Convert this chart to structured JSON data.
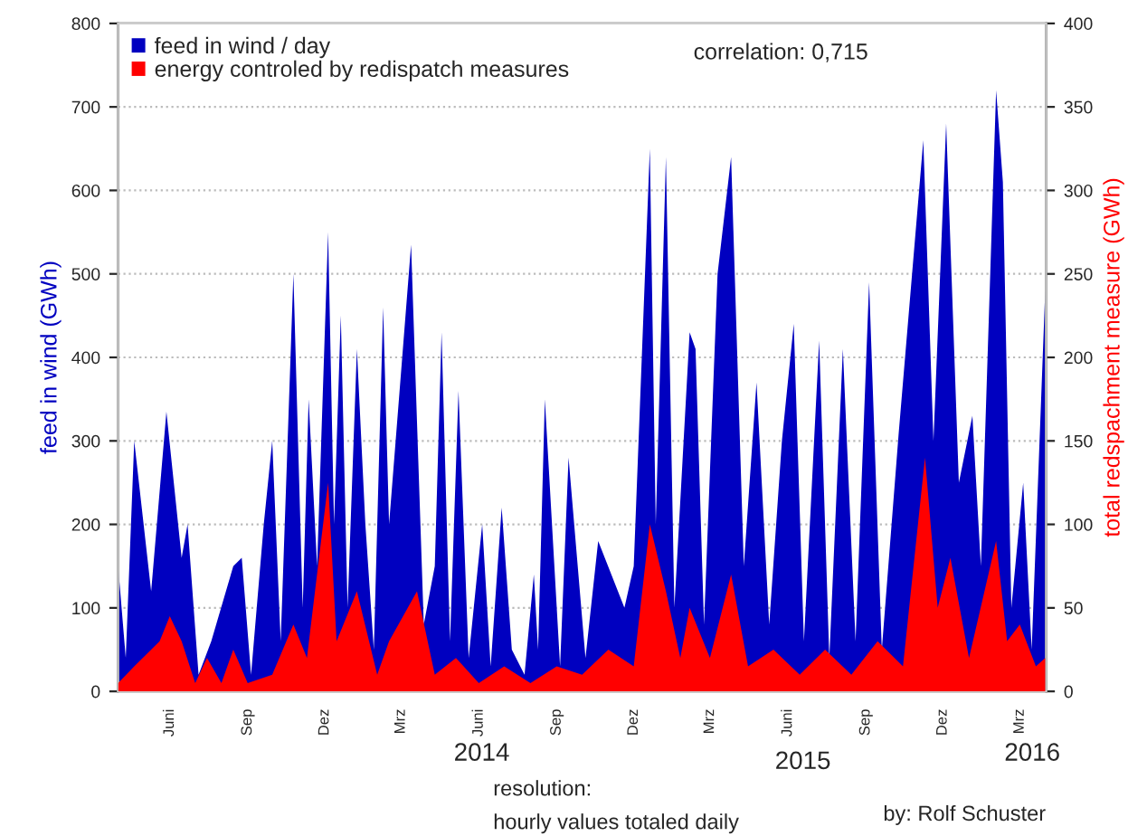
{
  "chart_data": {
    "type": "area",
    "annotations": [
      "correlation: 0,715",
      "2014",
      "2015",
      "2016",
      "resolution:",
      "hourly values totaled daily",
      "by: Rolf Schuster"
    ],
    "ylabel": "feed in wind (GWh)",
    "y2label": "total redspachment measure (GWh)",
    "xlim": [
      "2013-04-01",
      "2016-04-01"
    ],
    "xticks": [
      {
        "value": "2013-06-01",
        "label": "Juni"
      },
      {
        "value": "2013-09-01",
        "label": "Sep"
      },
      {
        "value": "2013-12-01",
        "label": "Dez"
      },
      {
        "value": "2014-03-01",
        "label": "Mrz"
      },
      {
        "value": "2014-06-01",
        "label": "Juni"
      },
      {
        "value": "2014-09-01",
        "label": "Sep"
      },
      {
        "value": "2014-12-01",
        "label": "Dez"
      },
      {
        "value": "2015-03-01",
        "label": "Mrz"
      },
      {
        "value": "2015-06-01",
        "label": "Juni"
      },
      {
        "value": "2015-09-01",
        "label": "Sep"
      },
      {
        "value": "2015-12-01",
        "label": "Dez"
      },
      {
        "value": "2016-03-01",
        "label": "Mrz"
      }
    ],
    "ylim": [
      0,
      800
    ],
    "yticks": [
      0,
      100,
      200,
      300,
      400,
      500,
      600,
      700,
      800
    ],
    "y2lim": [
      0,
      400
    ],
    "y2ticks": [
      0,
      50,
      100,
      150,
      200,
      250,
      300,
      350,
      400
    ],
    "grid": "y",
    "legend": "top left",
    "series": [
      {
        "name": "feed in wind / day",
        "color": "#0000c0",
        "x": [
          "2013-04-01",
          "2013-04-10",
          "2013-04-20",
          "2013-05-10",
          "2013-05-28",
          "2013-06-15",
          "2013-06-22",
          "2013-07-05",
          "2013-07-20",
          "2013-08-15",
          "2013-08-25",
          "2013-09-05",
          "2013-09-20",
          "2013-09-30",
          "2013-10-10",
          "2013-10-25",
          "2013-11-05",
          "2013-11-12",
          "2013-11-22",
          "2013-12-05",
          "2013-12-12",
          "2013-12-20",
          "2013-12-28",
          "2014-01-08",
          "2014-01-18",
          "2014-01-28",
          "2014-02-08",
          "2014-02-15",
          "2014-03-13",
          "2014-03-28",
          "2014-04-10",
          "2014-04-18",
          "2014-04-28",
          "2014-05-08",
          "2014-05-20",
          "2014-06-05",
          "2014-06-15",
          "2014-06-28",
          "2014-07-10",
          "2014-07-25",
          "2014-08-05",
          "2014-08-10",
          "2014-08-18",
          "2014-09-05",
          "2014-09-15",
          "2014-10-05",
          "2014-10-20",
          "2014-11-20",
          "2014-12-01",
          "2014-12-20",
          "2014-12-27",
          "2015-01-08",
          "2015-01-18",
          "2015-02-05",
          "2015-02-12",
          "2015-02-22",
          "2015-03-10",
          "2015-03-26",
          "2015-04-10",
          "2015-04-25",
          "2015-05-10",
          "2015-05-25",
          "2015-06-08",
          "2015-06-20",
          "2015-07-08",
          "2015-07-20",
          "2015-08-05",
          "2015-08-20",
          "2015-09-05",
          "2015-09-20",
          "2015-10-10",
          "2015-11-08",
          "2015-11-20",
          "2015-12-05",
          "2015-12-20",
          "2016-01-05",
          "2016-01-15",
          "2016-02-02",
          "2016-02-10",
          "2016-02-20",
          "2016-03-05",
          "2016-03-15",
          "2016-03-31"
        ],
        "values": [
          150,
          40,
          300,
          120,
          335,
          160,
          200,
          20,
          60,
          150,
          160,
          20,
          200,
          300,
          60,
          500,
          100,
          350,
          150,
          550,
          200,
          450,
          100,
          410,
          200,
          50,
          460,
          200,
          535,
          80,
          150,
          430,
          60,
          360,
          40,
          200,
          30,
          220,
          50,
          20,
          140,
          50,
          350,
          30,
          280,
          40,
          180,
          100,
          150,
          650,
          200,
          640,
          100,
          430,
          410,
          80,
          500,
          640,
          150,
          370,
          80,
          300,
          440,
          60,
          420,
          40,
          410,
          60,
          490,
          50,
          310,
          660,
          300,
          680,
          250,
          330,
          150,
          720,
          610,
          100,
          250,
          50,
          480
        ]
      },
      {
        "name": "energy controled by redispatch measures",
        "color": "#ff0000",
        "axis": "y2",
        "x": [
          "2013-04-01",
          "2013-04-20",
          "2013-05-20",
          "2013-06-01",
          "2013-06-15",
          "2013-07-01",
          "2013-07-15",
          "2013-08-01",
          "2013-08-15",
          "2013-09-01",
          "2013-09-30",
          "2013-10-25",
          "2013-11-10",
          "2013-12-05",
          "2013-12-15",
          "2014-01-08",
          "2014-02-01",
          "2014-02-15",
          "2014-03-20",
          "2014-04-10",
          "2014-05-05",
          "2014-06-01",
          "2014-07-01",
          "2014-08-01",
          "2014-09-01",
          "2014-10-01",
          "2014-11-01",
          "2014-12-01",
          "2014-12-20",
          "2015-01-08",
          "2015-01-25",
          "2015-02-05",
          "2015-03-01",
          "2015-03-26",
          "2015-04-15",
          "2015-05-15",
          "2015-06-15",
          "2015-07-15",
          "2015-08-15",
          "2015-09-15",
          "2015-10-15",
          "2015-11-10",
          "2015-11-25",
          "2015-12-10",
          "2016-01-01",
          "2016-02-02",
          "2016-02-15",
          "2016-03-01",
          "2016-03-20",
          "2016-03-31"
        ],
        "values": [
          5,
          15,
          30,
          45,
          30,
          5,
          20,
          5,
          25,
          5,
          10,
          40,
          20,
          125,
          30,
          60,
          10,
          30,
          60,
          10,
          20,
          5,
          15,
          5,
          15,
          10,
          25,
          15,
          100,
          60,
          20,
          50,
          20,
          70,
          15,
          25,
          10,
          25,
          10,
          30,
          15,
          140,
          50,
          80,
          20,
          90,
          30,
          40,
          15,
          20
        ]
      }
    ]
  }
}
